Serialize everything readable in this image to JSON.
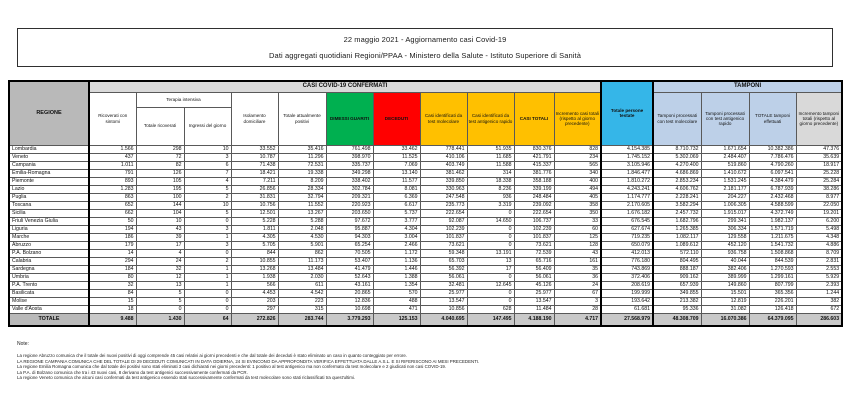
{
  "title": {
    "line1": "22 maggio 2021 - Aggiornamento casi Covid-19",
    "line2": "Dati aggregati quotidiani Regioni/PPAA - Ministero della Salute - Istituto Superiore di Sanità"
  },
  "colors": {
    "green": "#00b050",
    "red": "#ff0000",
    "orange": "#ffc000",
    "blue": "#35b6e8",
    "peri": "#bdd0e8",
    "bandgray": "#d9d9d9",
    "labgray": "#b9b9b9",
    "totgray": "#c9c9c9"
  },
  "table": {
    "headers": {
      "regione": "REGIONE",
      "casi_band": "CASI COVID-19 CONFERMATI",
      "tamponi_band": "TAMPONI",
      "terapia_intensiva": "Terapia intensiva",
      "cols": [
        "Ricoverati con sintomi",
        "Totale ricoverati",
        "Ingressi del giorno",
        "Isolamento domiciliare",
        "Totale attualmente positivi",
        "DIMESSI GUARITI",
        "DECEDUTI",
        "Casi identificati da test molecolare",
        "Casi identificati da test antigenico rapido",
        "CASI TOTALI",
        "Incremento casi totali (rispetto al giorno precedente)",
        "Totale persone testate",
        "Tamponi processati con test molecolare",
        "Tamponi processati con test antigenico rapido",
        "TOTALE tamponi effettuati",
        "Incremento tamponi totali (rispetto al giorno precedente)"
      ]
    },
    "rows": [
      {
        "regione": "Lombardia",
        "values": [
          "1.566",
          "298",
          "10",
          "33.552",
          "35.416",
          "761.498",
          "33.462",
          "778.441",
          "51.935",
          "830.376",
          "828",
          "4.154.385",
          "8.710.732",
          "1.671.654",
          "10.382.386",
          "47.376"
        ]
      },
      {
        "regione": "Veneto",
        "values": [
          "437",
          "72",
          "3",
          "10.787",
          "11.296",
          "398.970",
          "11.525",
          "410.106",
          "11.685",
          "421.791",
          "234",
          "1.745.152",
          "5.302.069",
          "2.484.407",
          "7.786.476",
          "35.639"
        ]
      },
      {
        "regione": "Campania",
        "values": [
          "1.011",
          "82",
          "6",
          "71.438",
          "72.531",
          "335.737",
          "7.069",
          "403.749",
          "11.588",
          "415.337",
          "565",
          "3.105.946",
          "4.270.400",
          "519.860",
          "4.790.260",
          "18.917"
        ]
      },
      {
        "regione": "Emilia-Romagna",
        "values": [
          "791",
          "126",
          "7",
          "18.421",
          "19.338",
          "349.298",
          "13.140",
          "381.462",
          "314",
          "381.776",
          "340",
          "1.846.477",
          "4.686.869",
          "1.410.672",
          "6.097.541",
          "25.228"
        ]
      },
      {
        "regione": "Piemonte",
        "values": [
          "893",
          "105",
          "4",
          "7.211",
          "8.209",
          "338.402",
          "11.577",
          "339.850",
          "18.338",
          "358.188",
          "400",
          "1.810.272",
          "2.853.234",
          "1.531.245",
          "4.384.479",
          "25.284"
        ]
      },
      {
        "regione": "Lazio",
        "values": [
          "1.283",
          "195",
          "5",
          "26.856",
          "28.334",
          "302.784",
          "8.081",
          "330.963",
          "8.236",
          "339.199",
          "494",
          "4.243.241",
          "4.606.762",
          "2.181.177",
          "6.787.939",
          "38.286"
        ]
      },
      {
        "regione": "Puglia",
        "values": [
          "863",
          "100",
          "2",
          "31.831",
          "32.794",
          "209.321",
          "6.369",
          "247.548",
          "936",
          "248.484",
          "405",
          "1.174.777",
          "2.228.241",
          "204.227",
          "2.432.468",
          "8.977"
        ]
      },
      {
        "regione": "Toscana",
        "values": [
          "652",
          "144",
          "10",
          "10.756",
          "11.552",
          "220.923",
          "6.617",
          "235.773",
          "3.319",
          "239.092",
          "358",
          "2.170.605",
          "3.582.294",
          "1.006.305",
          "4.588.599",
          "22.050"
        ]
      },
      {
        "regione": "Sicilia",
        "values": [
          "662",
          "104",
          "5",
          "12.501",
          "13.267",
          "203.650",
          "5.737",
          "222.654",
          "0",
          "222.654",
          "350",
          "1.676.182",
          "2.457.732",
          "1.915.017",
          "4.372.749",
          "19.201"
        ]
      },
      {
        "regione": "Friuli Venezia Giulia",
        "values": [
          "50",
          "10",
          "0",
          "5.228",
          "5.288",
          "97.672",
          "3.777",
          "92.087",
          "14.650",
          "106.737",
          "33",
          "676.545",
          "1.682.796",
          "299.341",
          "1.982.137",
          "6.200"
        ]
      },
      {
        "regione": "Liguria",
        "values": [
          "194",
          "43",
          "3",
          "1.811",
          "2.048",
          "95.887",
          "4.304",
          "102.239",
          "0",
          "102.239",
          "60",
          "627.674",
          "1.265.385",
          "306.334",
          "1.571.719",
          "5.498"
        ]
      },
      {
        "regione": "Marche",
        "values": [
          "186",
          "39",
          "1",
          "4.305",
          "4.530",
          "94.303",
          "3.004",
          "101.837",
          "0",
          "101.837",
          "125",
          "719.235",
          "1.082.117",
          "129.558",
          "1.211.675",
          "4.348"
        ]
      },
      {
        "regione": "Abruzzo",
        "values": [
          "179",
          "17",
          "3",
          "5.705",
          "5.901",
          "65.254",
          "2.466",
          "73.621",
          "0",
          "73.621",
          "128",
          "650.079",
          "1.089.612",
          "452.120",
          "1.541.732",
          "4.886"
        ]
      },
      {
        "regione": "P.A. Bolzano",
        "values": [
          "14",
          "4",
          "0",
          "844",
          "862",
          "70.505",
          "1.172",
          "59.348",
          "13.191",
          "72.539",
          "43",
          "412.013",
          "572.110",
          "936.758",
          "1.508.868",
          "8.709"
        ]
      },
      {
        "regione": "Calabria",
        "values": [
          "294",
          "24",
          "2",
          "10.855",
          "11.173",
          "53.407",
          "1.136",
          "65.703",
          "13",
          "65.716",
          "161",
          "776.180",
          "804.495",
          "40.044",
          "844.539",
          "2.831"
        ]
      },
      {
        "regione": "Sardegna",
        "values": [
          "184",
          "32",
          "1",
          "13.268",
          "13.484",
          "41.479",
          "1.446",
          "56.392",
          "17",
          "56.409",
          "35",
          "743.869",
          "888.187",
          "382.406",
          "1.270.593",
          "2.553"
        ]
      },
      {
        "regione": "Umbria",
        "values": [
          "80",
          "12",
          "1",
          "1.938",
          "2.030",
          "52.643",
          "1.388",
          "56.061",
          "0",
          "56.061",
          "36",
          "372.406",
          "909.162",
          "389.999",
          "1.299.161",
          "5.929"
        ]
      },
      {
        "regione": "P.A. Trento",
        "values": [
          "32",
          "13",
          "1",
          "566",
          "611",
          "43.161",
          "1.354",
          "32.481",
          "12.645",
          "45.126",
          "24",
          "208.619",
          "657.939",
          "149.860",
          "807.799",
          "2.393"
        ]
      },
      {
        "regione": "Basilicata",
        "values": [
          "84",
          "5",
          "0",
          "4.453",
          "4.542",
          "20.865",
          "570",
          "25.977",
          "0",
          "25.977",
          "67",
          "199.999",
          "349.855",
          "15.501",
          "365.356",
          "1.244"
        ]
      },
      {
        "regione": "Molise",
        "values": [
          "15",
          "5",
          "0",
          "203",
          "223",
          "12.836",
          "488",
          "13.547",
          "0",
          "13.547",
          "3",
          "193.642",
          "213.382",
          "12.819",
          "226.201",
          "382"
        ]
      },
      {
        "regione": "Valle d'Aosta",
        "values": [
          "18",
          "0",
          "0",
          "297",
          "315",
          "10.698",
          "471",
          "10.856",
          "628",
          "11.484",
          "28",
          "61.681",
          "95.336",
          "31.082",
          "126.418",
          "672"
        ]
      }
    ],
    "totale": {
      "label": "TOTALE",
      "values": [
        "9.488",
        "1.430",
        "64",
        "272.826",
        "283.744",
        "3.779.293",
        "125.153",
        "4.040.695",
        "147.495",
        "4.188.190",
        "4.717",
        "27.568.979",
        "48.308.709",
        "16.070.386",
        "64.379.095",
        "286.603"
      ]
    }
  },
  "notes": {
    "label": "Note:",
    "items": [
      "La regione Abruzzo comunica che il totale dei nuovi positivi di oggi comprende 45 casi relativi ai giorni precedenti e che dal totale dei deceduti è stato eliminato un caso in quanto conteggiato per errore.",
      "LA REGIONE CAMPANIA COMUNICA CHE DEL TOTALE DI 29 DECEDUTI COMUNICATI IN DATA ODIERNA, 24 SI EVINCONO DA APPROFONDITA VERIFICA EFFETTUATA DALLE A.S.L. E SI RIFERISCONO AI MESI PRECEDENTI.",
      "La regione Emilia Romagna comunica che dal totale dei positivi sono stati eliminati 3 casi dichiarati nei giorni precedenti: 1 positivo al test antigenico ma non confermato da test molecolare e 2 giudicati non casi COVID-19.",
      "La P.A. di Bolzano comunica che tra i 43 nuovi casi, 8 derivano da test antigenici successivamente confermati da PCR.",
      "La regione Veneto comunica che alcuni casi confermati da test antigenico essendo stati successivamente confermati da test molecolare sono stati riclassificati tra quest'ultimi."
    ]
  }
}
